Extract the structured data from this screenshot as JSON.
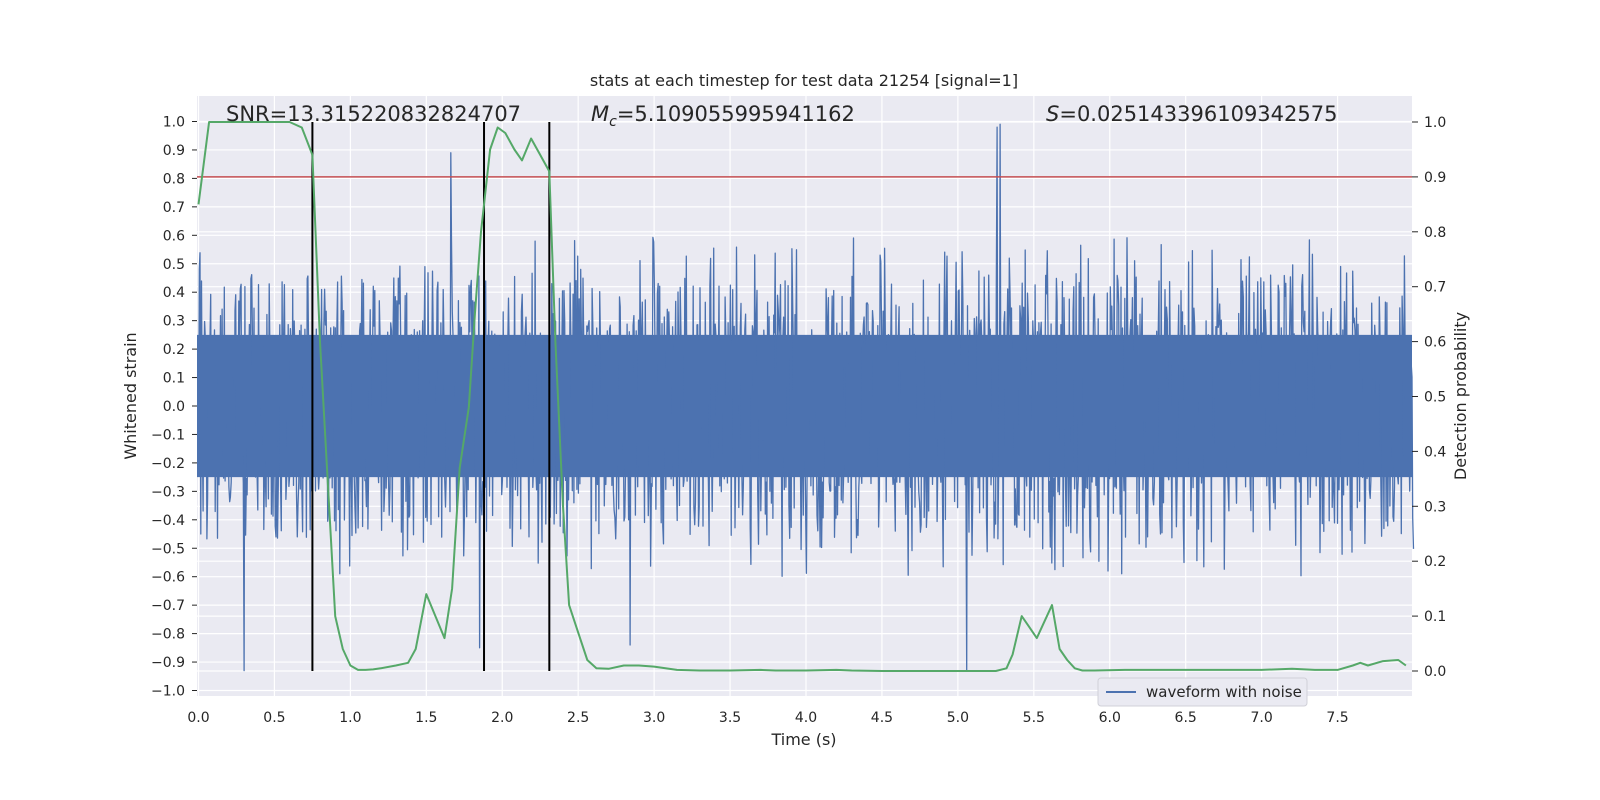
{
  "chart_data": {
    "type": "line",
    "title": "stats at each timestep for test data 21254 [signal=1]",
    "xlabel": "Time (s)",
    "ylabel_left": "Whitened strain",
    "ylabel_right": "Detection probability",
    "xlim": [
      0.0,
      8.0
    ],
    "ylim_left": [
      -1.0,
      1.0
    ],
    "ylim_right": [
      0.0,
      1.0
    ],
    "x_ticks": [
      0.0,
      0.5,
      1.0,
      1.5,
      2.0,
      2.5,
      3.0,
      3.5,
      4.0,
      4.5,
      5.0,
      5.5,
      6.0,
      6.5,
      7.0,
      7.5
    ],
    "x_tick_labels": [
      "0.0",
      "0.5",
      "1.0",
      "1.5",
      "2.0",
      "2.5",
      "3.0",
      "3.5",
      "4.0",
      "4.5",
      "5.0",
      "5.5",
      "6.0",
      "6.5",
      "7.0",
      "7.5"
    ],
    "y_left_ticks": [
      1.0,
      0.9,
      0.8,
      0.7,
      0.6,
      0.5,
      0.4,
      0.3,
      0.2,
      0.1,
      0.0,
      -0.1,
      -0.2,
      -0.3,
      -0.4,
      -0.5,
      -0.6,
      -0.7,
      -0.8,
      -0.9,
      -1.0
    ],
    "y_left_tick_labels": [
      "1.0",
      "0.9",
      "0.8",
      "0.7",
      "0.6",
      "0.5",
      "0.4",
      "0.3",
      "0.2",
      "0.1",
      "0.0",
      "−0.1",
      "−0.2",
      "−0.3",
      "−0.4",
      "−0.5",
      "−0.6",
      "−0.7",
      "−0.8",
      "−0.9",
      "−1.0"
    ],
    "y_right_ticks": [
      1.0,
      0.9,
      0.8,
      0.7,
      0.6,
      0.5,
      0.4,
      0.3,
      0.2,
      0.1,
      0.0
    ],
    "y_right_tick_labels": [
      "1.0",
      "0.9",
      "0.8",
      "0.7",
      "0.6",
      "0.5",
      "0.4",
      "0.3",
      "0.2",
      "0.1",
      "0.0"
    ],
    "annotations": {
      "snr": "SNR=13.315220832824707",
      "mc_symbol": "M",
      "mc_sub": "c",
      "mc_value": "=5.109055995941162",
      "s_symbol": "S",
      "s_value": "=0.025143396109342575"
    },
    "legend": {
      "label": "waveform with noise",
      "placement": "lower-right"
    },
    "vertical_lines": [
      0.75,
      1.88,
      2.31
    ],
    "threshold_right": 0.9,
    "waveform": {
      "name": "waveform with noise",
      "x_range": [
        0.0,
        8.0
      ],
      "samples": 1600,
      "core_envelope": 0.25,
      "typical_peak": 0.55,
      "notable_extrema": [
        {
          "x": 0.3,
          "y": -0.93
        },
        {
          "x": 1.66,
          "y": 0.89
        },
        {
          "x": 1.85,
          "y": -0.85
        },
        {
          "x": 2.84,
          "y": -0.84
        },
        {
          "x": 5.06,
          "y": -0.93
        },
        {
          "x": 5.26,
          "y": 0.98
        },
        {
          "x": 5.28,
          "y": 0.99
        }
      ]
    },
    "series": [
      {
        "name": "detection probability",
        "axis": "right",
        "x": [
          0.0,
          0.07,
          0.13,
          0.2,
          0.3,
          0.4,
          0.5,
          0.6,
          0.68,
          0.75,
          0.8,
          0.85,
          0.9,
          0.95,
          1.0,
          1.05,
          1.1,
          1.15,
          1.2,
          1.3,
          1.38,
          1.43,
          1.5,
          1.56,
          1.62,
          1.67,
          1.72,
          1.78,
          1.82,
          1.86,
          1.92,
          1.97,
          2.02,
          2.08,
          2.13,
          2.19,
          2.25,
          2.31,
          2.35,
          2.4,
          2.44,
          2.5,
          2.56,
          2.62,
          2.7,
          2.8,
          2.9,
          3.0,
          3.15,
          3.3,
          3.5,
          3.7,
          3.8,
          4.0,
          4.2,
          4.3,
          4.5,
          5.0,
          5.25,
          5.32,
          5.36,
          5.42,
          5.47,
          5.52,
          5.57,
          5.62,
          5.67,
          5.72,
          5.77,
          5.82,
          5.9,
          6.1,
          6.3,
          6.5,
          6.7,
          7.0,
          7.2,
          7.35,
          7.5,
          7.6,
          7.65,
          7.7,
          7.8,
          7.9,
          7.95
        ],
        "y": [
          0.85,
          1.0,
          1.0,
          1.0,
          1.0,
          1.0,
          1.0,
          1.0,
          0.99,
          0.94,
          0.6,
          0.35,
          0.1,
          0.04,
          0.01,
          0.002,
          0.002,
          0.003,
          0.005,
          0.01,
          0.015,
          0.04,
          0.14,
          0.1,
          0.06,
          0.15,
          0.37,
          0.48,
          0.65,
          0.8,
          0.95,
          0.99,
          0.98,
          0.95,
          0.93,
          0.97,
          0.94,
          0.91,
          0.6,
          0.3,
          0.12,
          0.07,
          0.02,
          0.005,
          0.004,
          0.01,
          0.01,
          0.008,
          0.002,
          0.001,
          0.001,
          0.002,
          0.001,
          0.001,
          0.002,
          0.001,
          0.0,
          0.0,
          0.0,
          0.005,
          0.03,
          0.1,
          0.08,
          0.06,
          0.09,
          0.12,
          0.04,
          0.02,
          0.005,
          0.001,
          0.001,
          0.002,
          0.002,
          0.002,
          0.002,
          0.002,
          0.004,
          0.002,
          0.002,
          0.01,
          0.015,
          0.01,
          0.018,
          0.02,
          0.01
        ]
      }
    ],
    "colors": {
      "waveform": "#4c72b0",
      "probability": "#55a868",
      "threshold": "#c44e52",
      "vlines": "#000000",
      "plot_bg": "#eaeaf2",
      "grid": "#ffffff"
    }
  }
}
